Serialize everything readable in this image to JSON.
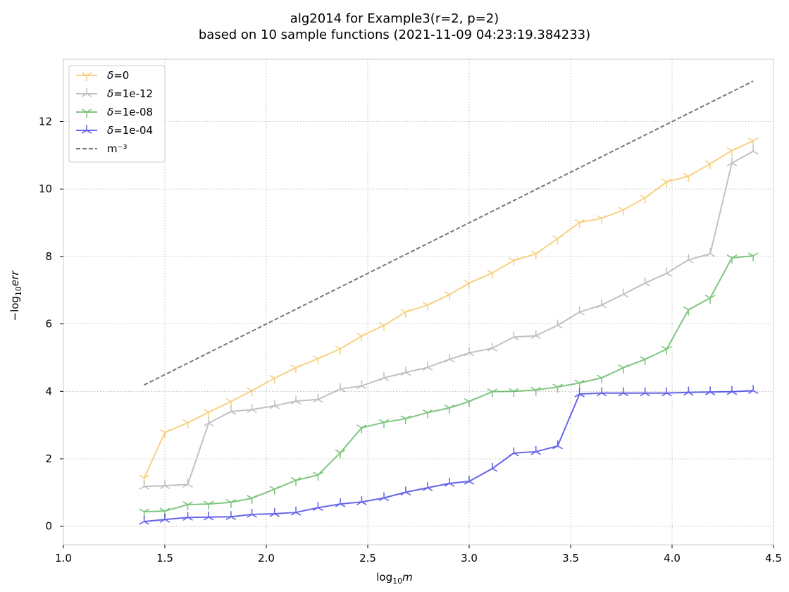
{
  "chart_data": {
    "type": "line",
    "title": "alg2014 for Example3(r=2, p=2)",
    "subtitle": "based on 10 sample functions (2021-11-09 04:23:19.384233)",
    "xlabel_base": "log",
    "xlabel_sub": "10",
    "xlabel_var": "m",
    "ylabel_prefix": "−log",
    "ylabel_sub": "10",
    "ylabel_var": "err",
    "xlim": [
      1.0,
      4.5
    ],
    "ylim": [
      -0.55,
      13.85
    ],
    "xticks": [
      1.0,
      1.5,
      2.0,
      2.5,
      3.0,
      3.5,
      4.0,
      4.5
    ],
    "xtick_labels": [
      "1.0",
      "1.5",
      "2.0",
      "2.5",
      "3.0",
      "3.5",
      "4.0",
      "4.5"
    ],
    "yticks": [
      0,
      2,
      4,
      6,
      8,
      10,
      12
    ],
    "ytick_labels": [
      "0",
      "2",
      "4",
      "6",
      "8",
      "10",
      "12"
    ],
    "grid": true,
    "legend_position": "top-left",
    "x": [
      1.398,
      1.5,
      1.613,
      1.716,
      1.826,
      1.929,
      2.041,
      2.146,
      2.255,
      2.365,
      2.47,
      2.58,
      2.687,
      2.795,
      2.903,
      3.0,
      3.114,
      3.22,
      3.329,
      3.436,
      3.544,
      3.653,
      3.76,
      3.867,
      3.973,
      4.081,
      4.188,
      4.295,
      4.4
    ],
    "series": [
      {
        "name": "=0",
        "color": "#f5b432",
        "marker": "tri_down",
        "values": [
          1.43,
          2.78,
          3.07,
          3.38,
          3.7,
          4.02,
          4.39,
          4.7,
          4.97,
          5.26,
          5.64,
          5.96,
          6.35,
          6.56,
          6.87,
          7.21,
          7.51,
          7.88,
          8.08,
          8.53,
          9.01,
          9.13,
          9.38,
          9.74,
          10.21,
          10.38,
          10.75,
          11.14,
          11.43
        ]
      },
      {
        "name": "=1e-12",
        "color": "#999999",
        "marker": "tri_up",
        "values": [
          1.18,
          1.2,
          1.24,
          3.06,
          3.4,
          3.46,
          3.57,
          3.71,
          3.76,
          4.07,
          4.16,
          4.4,
          4.56,
          4.71,
          4.95,
          5.14,
          5.28,
          5.61,
          5.65,
          5.96,
          6.35,
          6.56,
          6.88,
          7.21,
          7.5,
          7.9,
          8.08,
          10.77,
          11.12
        ]
      },
      {
        "name": "=1e-08",
        "color": "#2ca02c",
        "marker": "tri_down",
        "values": [
          0.43,
          0.45,
          0.64,
          0.66,
          0.71,
          0.83,
          1.1,
          1.36,
          1.52,
          2.18,
          2.92,
          3.08,
          3.19,
          3.37,
          3.51,
          3.7,
          3.99,
          4.0,
          4.04,
          4.13,
          4.25,
          4.4,
          4.7,
          4.95,
          5.25,
          6.42,
          6.77,
          7.96,
          8.02
        ]
      },
      {
        "name": "=1e-04",
        "color": "#0000dd",
        "marker": "tri_up",
        "values": [
          0.14,
          0.2,
          0.26,
          0.27,
          0.28,
          0.35,
          0.37,
          0.41,
          0.55,
          0.66,
          0.72,
          0.84,
          1.01,
          1.14,
          1.27,
          1.33,
          1.71,
          2.17,
          2.21,
          2.38,
          3.92,
          3.95,
          3.95,
          3.95,
          3.95,
          3.97,
          3.98,
          3.99,
          4.02
        ]
      }
    ],
    "reference_line": {
      "name": "m⁻³",
      "color": "#777777",
      "style": "dashed",
      "x": [
        1.398,
        4.4
      ],
      "values": [
        4.19,
        13.2
      ]
    },
    "legend_delta_symbol": "δ"
  }
}
